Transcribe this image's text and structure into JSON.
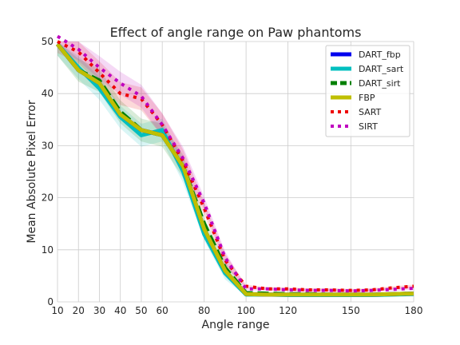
{
  "chart_data": {
    "type": "line",
    "title": "Effect of angle range on Paw phantoms",
    "xlabel": "Angle range",
    "ylabel": "Mean Absolute Pixel Error",
    "categories": [
      "10",
      "20",
      "30",
      "40",
      "50",
      "60",
      "70",
      "80",
      "90",
      "100",
      "110",
      "120",
      "130",
      "140",
      "150",
      "160",
      "170",
      "180"
    ],
    "x_tick_labels": [
      "10",
      "20",
      "30",
      "40",
      "50",
      "60",
      "80",
      "100",
      "120",
      "150",
      "180"
    ],
    "x_tick_index": [
      0,
      1,
      2,
      3,
      4,
      5,
      7,
      9,
      11,
      14,
      17
    ],
    "ylim": [
      0,
      50
    ],
    "y_ticks": [
      "0",
      "10",
      "20",
      "30",
      "40",
      "50"
    ],
    "grid": true,
    "legend_position": "top-right",
    "series": [
      {
        "name": "DART_fbp",
        "color": "#0000ee",
        "style": "solid",
        "band": false,
        "values": [
          49.5,
          44.5,
          42,
          36,
          33,
          32,
          26,
          14,
          6,
          1.5,
          1.4,
          1.4,
          1.4,
          1.4,
          1.4,
          1.4,
          1.5,
          1.6
        ]
      },
      {
        "name": "DART_sart",
        "color": "#00bfbf",
        "style": "solid",
        "band": true,
        "values": [
          49.5,
          45,
          41,
          35.5,
          32,
          33,
          25,
          13,
          5.5,
          1.4,
          1.4,
          1.3,
          1.3,
          1.3,
          1.3,
          1.3,
          1.4,
          1.5
        ]
      },
      {
        "name": "DART_sirt",
        "color": "#008000",
        "style": "dashed",
        "band": true,
        "values": [
          49.5,
          44.5,
          42.5,
          36.5,
          33,
          32,
          26,
          15,
          6.5,
          1.7,
          1.6,
          1.5,
          1.5,
          1.4,
          1.4,
          1.4,
          1.5,
          1.6
        ]
      },
      {
        "name": "FBP",
        "color": "#bfbf00",
        "style": "solid",
        "band": false,
        "values": [
          49.5,
          44.5,
          42,
          36,
          33,
          32,
          26,
          14,
          6,
          1.5,
          1.4,
          1.4,
          1.4,
          1.4,
          1.4,
          1.4,
          1.5,
          1.6
        ]
      },
      {
        "name": "SART",
        "color": "#ee0000",
        "style": "dotted",
        "band": true,
        "values": [
          50,
          48,
          44,
          40,
          39,
          34,
          27,
          18,
          8,
          3,
          2.5,
          2.5,
          2.3,
          2.3,
          2.2,
          2.3,
          2.7,
          3
        ]
      },
      {
        "name": "SIRT",
        "color": "#bf00bf",
        "style": "dotted",
        "band": true,
        "values": [
          51,
          48.5,
          45,
          42,
          39.5,
          34,
          27.5,
          19,
          8.5,
          2.5,
          2.5,
          2.3,
          2.2,
          2.2,
          2.1,
          2.2,
          2.4,
          2.6
        ]
      }
    ]
  }
}
